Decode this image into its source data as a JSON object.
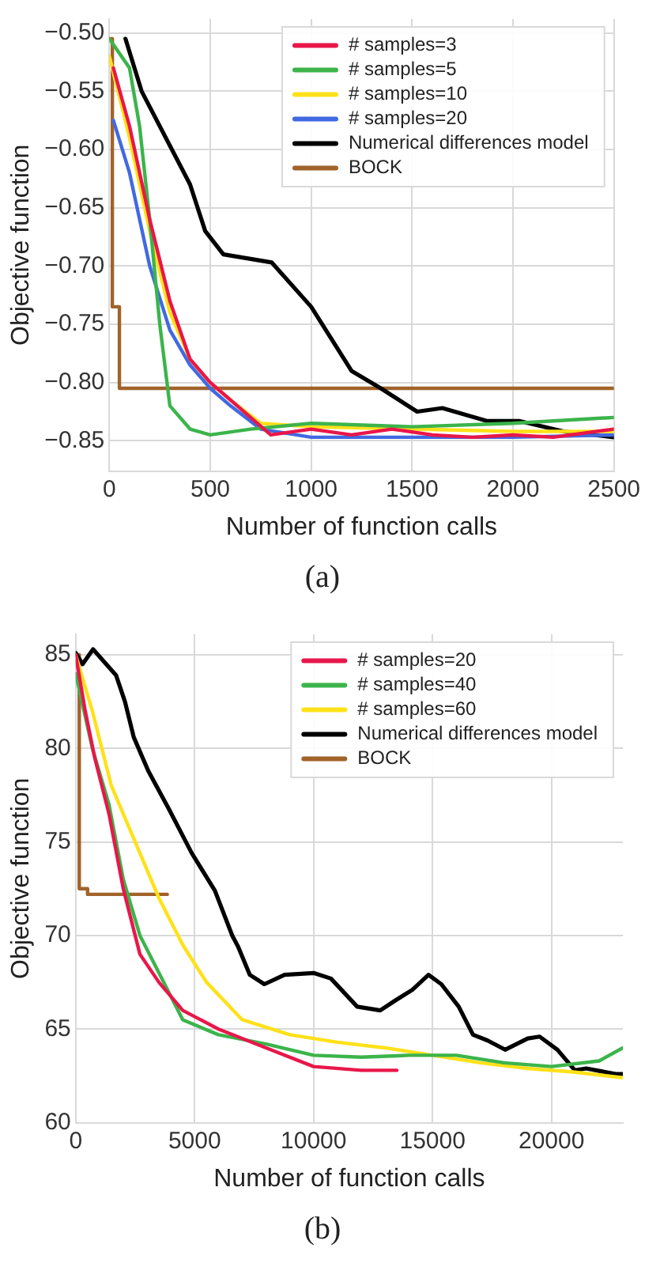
{
  "chart_data": [
    {
      "type": "line",
      "xlabel": "Number of function calls",
      "ylabel": "Objective function",
      "xlim": [
        0,
        2500
      ],
      "ylim": [
        -0.876,
        -0.488
      ],
      "xticks": [
        0,
        500,
        1000,
        1500,
        2000,
        2500
      ],
      "yticks": [
        {
          "value": -0.5,
          "label": "−0.50"
        },
        {
          "value": -0.55,
          "label": "−0.55"
        },
        {
          "value": -0.6,
          "label": "−0.60"
        },
        {
          "value": -0.65,
          "label": "−0.65"
        },
        {
          "value": -0.7,
          "label": "−0.70"
        },
        {
          "value": -0.75,
          "label": "−0.75"
        },
        {
          "value": -0.8,
          "label": "−0.80"
        },
        {
          "value": -0.85,
          "label": "−0.85"
        }
      ],
      "grid": true,
      "legend": "top right",
      "marker": "none",
      "annotations": [
        "(a)"
      ],
      "series": [
        {
          "name": "# samples=3",
          "color": "#e8174a",
          "x": [
            20,
            100,
            200,
            300,
            400,
            500,
            600,
            700,
            800,
            1000,
            1200,
            1400,
            1600,
            1800,
            2000,
            2200,
            2500
          ],
          "values": [
            -0.53,
            -0.58,
            -0.66,
            -0.73,
            -0.78,
            -0.8,
            -0.815,
            -0.83,
            -0.845,
            -0.84,
            -0.845,
            -0.84,
            -0.845,
            -0.847,
            -0.845,
            -0.847,
            -0.84
          ]
        },
        {
          "name": "# samples=5",
          "color": "#3cb44b",
          "x": [
            0,
            100,
            150,
            200,
            250,
            300,
            400,
            500,
            700,
            1000,
            1500,
            2000,
            2500
          ],
          "values": [
            -0.505,
            -0.53,
            -0.58,
            -0.66,
            -0.75,
            -0.82,
            -0.84,
            -0.845,
            -0.84,
            -0.835,
            -0.838,
            -0.835,
            -0.83
          ]
        },
        {
          "name": "# samples=10",
          "color": "#ffe119",
          "x": [
            0,
            100,
            200,
            300,
            400,
            500,
            600,
            750,
            1000,
            1500,
            2000,
            2500
          ],
          "values": [
            -0.52,
            -0.59,
            -0.67,
            -0.74,
            -0.78,
            -0.8,
            -0.815,
            -0.835,
            -0.838,
            -0.84,
            -0.842,
            -0.842
          ]
        },
        {
          "name": "# samples=20",
          "color": "#4169e1",
          "x": [
            20,
            100,
            200,
            300,
            400,
            500,
            600,
            750,
            1000,
            1500,
            2000,
            2500
          ],
          "values": [
            -0.575,
            -0.62,
            -0.7,
            -0.755,
            -0.785,
            -0.805,
            -0.82,
            -0.84,
            -0.847,
            -0.847,
            -0.847,
            -0.845
          ]
        },
        {
          "name": "Numerical differences model",
          "color": "#000000",
          "x": [
            80,
            160,
            400,
            475,
            565,
            805,
            1000,
            1200,
            1345,
            1525,
            1650,
            1870,
            2030,
            2250,
            2500
          ],
          "values": [
            -0.505,
            -0.55,
            -0.63,
            -0.67,
            -0.69,
            -0.697,
            -0.735,
            -0.79,
            -0.805,
            -0.825,
            -0.822,
            -0.833,
            -0.833,
            -0.842,
            -0.847
          ]
        },
        {
          "name": "BOCK",
          "type": "step",
          "color": "#a0632a",
          "x": [
            0,
            15,
            50,
            2500
          ],
          "values": [
            -0.505,
            -0.735,
            -0.805,
            -0.805
          ]
        }
      ]
    },
    {
      "type": "line",
      "xlabel": "Number of function calls",
      "ylabel": "Objective function",
      "xlim": [
        0,
        23000
      ],
      "ylim": [
        60,
        86.1
      ],
      "xticks": [
        0,
        5000,
        10000,
        15000,
        20000
      ],
      "yticks": [
        60,
        65,
        70,
        75,
        80,
        85
      ],
      "grid": true,
      "legend": "top right",
      "marker": "none",
      "annotations": [
        "(b)"
      ],
      "series": [
        {
          "name": "# samples=20",
          "color": "#e8174a",
          "x": [
            0,
            400,
            800,
            1400,
            2000,
            2700,
            3500,
            4500,
            6000,
            8000,
            10000,
            12000,
            13500
          ],
          "values": [
            85,
            82,
            79.5,
            76.5,
            72.5,
            69,
            67.5,
            66,
            65,
            64,
            63,
            62.8,
            62.8
          ]
        },
        {
          "name": "# samples=40",
          "color": "#3cb44b",
          "x": [
            0,
            700,
            1400,
            2000,
            2700,
            3500,
            4500,
            6000,
            8000,
            10000,
            12000,
            14000,
            16000,
            18000,
            20000,
            22000,
            23000
          ],
          "values": [
            84,
            80,
            77,
            73,
            70,
            68,
            65.5,
            64.7,
            64.2,
            63.6,
            63.5,
            63.6,
            63.6,
            63.2,
            63,
            63.3,
            64
          ]
        },
        {
          "name": "# samples=60",
          "color": "#ffe119",
          "x": [
            0,
            700,
            1500,
            2500,
            3500,
            4500,
            5500,
            7000,
            9000,
            11000,
            13000,
            15000,
            17000,
            19000,
            21000,
            23000
          ],
          "values": [
            85,
            82,
            78,
            75,
            72,
            69.5,
            67.5,
            65.5,
            64.7,
            64.3,
            64,
            63.6,
            63.2,
            62.9,
            62.7,
            62.4
          ]
        },
        {
          "name": "Numerical differences model",
          "color": "#000000",
          "x": [
            0,
            290,
            730,
            1700,
            2070,
            2440,
            3050,
            3900,
            4880,
            5850,
            6580,
            6830,
            7320,
            7930,
            8780,
            10000,
            10730,
            11830,
            12800,
            13400,
            14150,
            14830,
            15370,
            16100,
            16700,
            17300,
            18050,
            19000,
            19500,
            20250,
            20980,
            21460,
            22700,
            23000
          ],
          "values": [
            85.1,
            84.5,
            85.3,
            83.9,
            82.5,
            80.6,
            78.8,
            76.8,
            74.4,
            72.4,
            70,
            69.4,
            67.9,
            67.4,
            67.9,
            68,
            67.7,
            66.2,
            66,
            66.5,
            67.1,
            67.9,
            67.4,
            66.2,
            64.7,
            64.4,
            63.9,
            64.5,
            64.6,
            63.9,
            62.8,
            62.9,
            62.6,
            62.6
          ]
        },
        {
          "name": "BOCK",
          "type": "step",
          "color": "#a0632a",
          "x": [
            0,
            150,
            500,
            3850
          ],
          "values": [
            85,
            72.5,
            72.2,
            72.2
          ]
        }
      ]
    }
  ]
}
